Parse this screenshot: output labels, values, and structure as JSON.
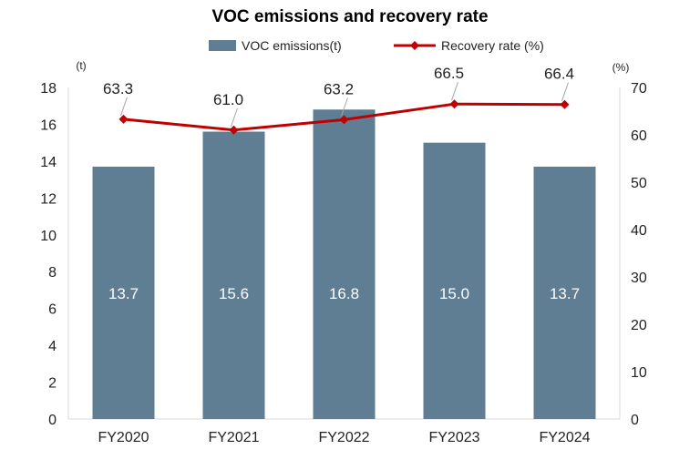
{
  "chart_data": {
    "type": "bar+line",
    "title": "VOC emissions and recovery rate",
    "categories": [
      "FY2020",
      "FY2021",
      "FY2022",
      "FY2023",
      "FY2024"
    ],
    "series": [
      {
        "name": "VOC emissions(t)",
        "type": "bar",
        "axis": "left",
        "values": [
          13.7,
          15.6,
          16.8,
          15.0,
          13.7
        ],
        "labels": [
          "13.7",
          "15.6",
          "16.8",
          "15.0",
          "13.7"
        ],
        "color": "#5f7d93"
      },
      {
        "name": "Recovery rate (%)",
        "type": "line",
        "axis": "right",
        "values": [
          63.3,
          61.0,
          63.2,
          66.5,
          66.4
        ],
        "labels": [
          "63.3",
          "61.0",
          "63.2",
          "66.5",
          "66.4"
        ],
        "color": "#c00000"
      }
    ],
    "y_left": {
      "unit": "(t)",
      "ylim": [
        0,
        18
      ],
      "ticks": [
        "0",
        "2",
        "4",
        "6",
        "8",
        "10",
        "12",
        "14",
        "16",
        "18"
      ]
    },
    "y_right": {
      "unit": "(%)",
      "ylim": [
        0,
        70
      ],
      "ticks": [
        "0",
        "10",
        "20",
        "30",
        "40",
        "50",
        "60",
        "70"
      ]
    },
    "legend": "top-center",
    "grid": false
  }
}
